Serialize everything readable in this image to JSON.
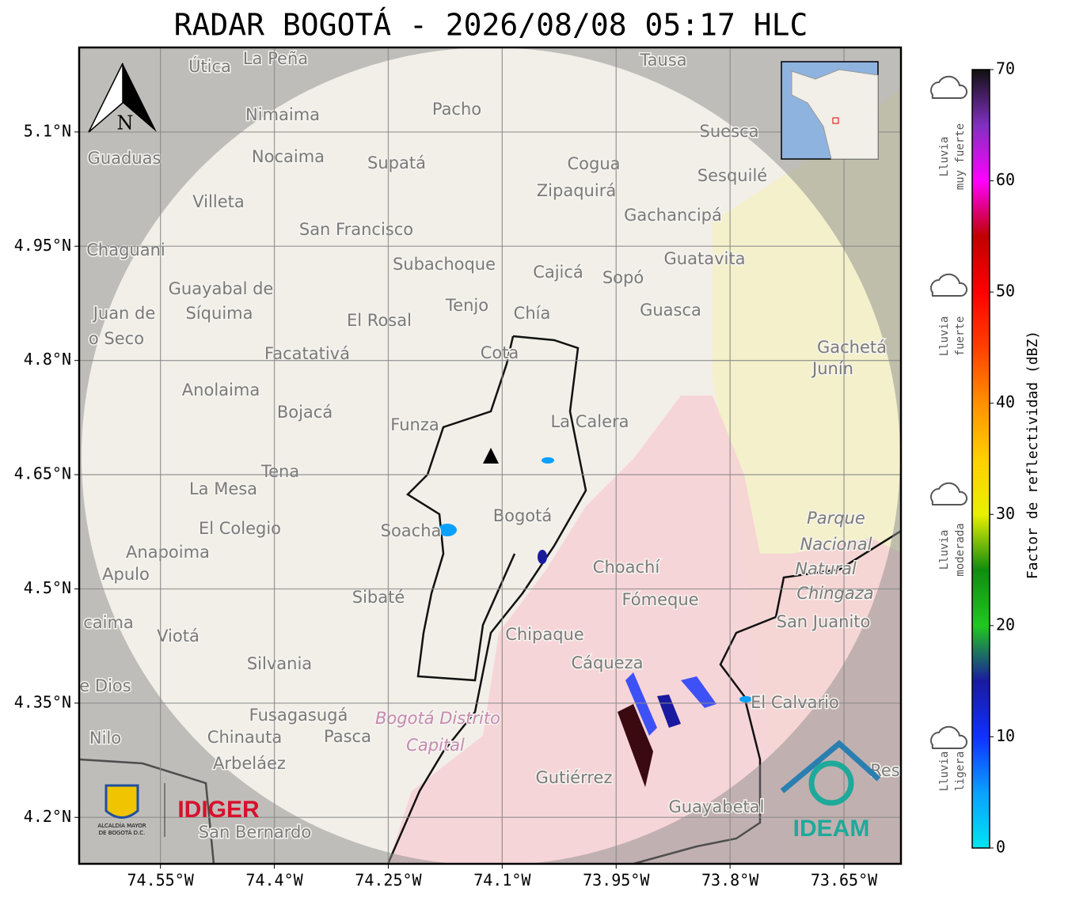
{
  "title": "RADAR BOGOTÁ - 2026/08/08 05:17 HLC",
  "map": {
    "xlim": [
      -74.657,
      -73.575
    ],
    "ylim": [
      4.139,
      5.211
    ],
    "grid": true,
    "xticks": [
      {
        "value": -74.55,
        "label": "74.55°W"
      },
      {
        "value": -74.4,
        "label": "74.4°W"
      },
      {
        "value": -74.25,
        "label": "74.25°W"
      },
      {
        "value": -74.1,
        "label": "74.1°W"
      },
      {
        "value": -73.95,
        "label": "73.95°W"
      },
      {
        "value": -73.8,
        "label": "73.8°W"
      },
      {
        "value": -73.65,
        "label": "73.65°W"
      }
    ],
    "yticks": [
      {
        "value": 5.1,
        "label": "5.1°N"
      },
      {
        "value": 4.95,
        "label": "4.95°N"
      },
      {
        "value": 4.8,
        "label": "4.8°N"
      },
      {
        "value": 4.65,
        "label": "4.65°N"
      },
      {
        "value": 4.5,
        "label": "4.5°N"
      },
      {
        "value": 4.35,
        "label": "4.35°N"
      },
      {
        "value": 4.2,
        "label": "4.2°N"
      }
    ]
  },
  "places": [
    "La Peña",
    "Útica",
    "Tausa",
    "Pacho",
    "Nimaima",
    "Suesca",
    "Guaduas",
    "Nocaima",
    "Supatá",
    "Cogua",
    "Sesquilé",
    "Zipaquirá",
    "Villeta",
    "Gachancipá",
    "San Francisco",
    "Chaguani",
    "Guatavita",
    "Subachoque",
    "Cajicá",
    "Sopó",
    "Guayabal de",
    "Síquima",
    "Tenjo",
    "Guasca",
    "Juan de",
    "El Rosal",
    "Chía",
    "o Seco",
    "Gachetá",
    "Facatativá",
    "Cota",
    "Junín",
    "Anolaima",
    "Bojacá",
    "Funza",
    "La Calera",
    "Tena",
    "La Mesa",
    "Bogotá",
    "Parque",
    "El Colegio",
    "Soacha",
    "Nacional",
    "Anapoima",
    "Apulo",
    "Choachí",
    "Natural",
    "Chingaza",
    "Fómeque",
    "Sibaté",
    "San Juanito",
    "caima",
    "Viotá",
    "Chipaque",
    "Cáqueza",
    "Silvania",
    "e Dios",
    "El Calvario",
    "Fusagasugá",
    "Bogotá Distrito",
    "Nilo",
    "Chinauta",
    "Pasca",
    "Capital",
    "Arbeláez",
    "Gutiérrez",
    "Res",
    "Guayabetal",
    "San Bernardo"
  ],
  "colorbar": {
    "label": "Factor de reflectividad (dBZ)",
    "lim": [
      0,
      70
    ],
    "ticks": [
      0,
      10,
      20,
      30,
      40,
      50,
      60,
      70
    ],
    "colors": [
      "#00e5f0",
      "#0aa0ff",
      "#1030ff",
      "#1a1aa0",
      "#20c820",
      "#108c10",
      "#e8f000",
      "#ffd000",
      "#ff9000",
      "#ff4000",
      "#ff0000",
      "#c00000",
      "#ff00ff",
      "#8030c0",
      "#101010"
    ]
  },
  "rain_levels": [
    [
      "Lluvia",
      "muy fuerte"
    ],
    [
      "Lluvia",
      "fuerte"
    ],
    [
      "Lluvia",
      "moderada"
    ],
    [
      "Lluvia",
      "ligera"
    ]
  ],
  "logos": {
    "north": "N",
    "alcaldia": [
      "ALCALDÍA MAYOR",
      "DE BOGOTÁ D.C."
    ],
    "idiger": "IDIGER",
    "ideam": "IDEAM"
  }
}
